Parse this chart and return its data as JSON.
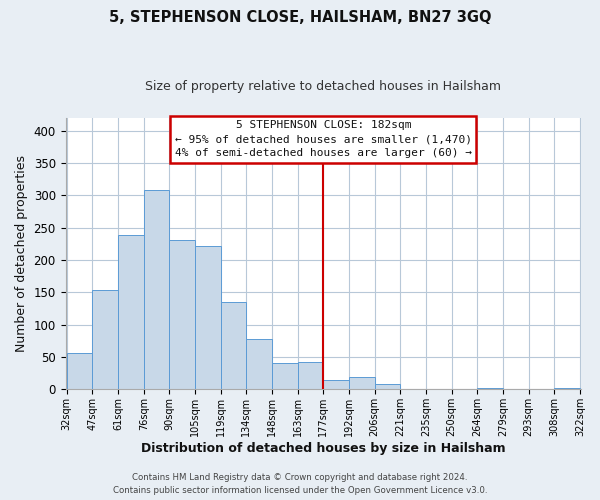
{
  "title": "5, STEPHENSON CLOSE, HAILSHAM, BN27 3GQ",
  "subtitle": "Size of property relative to detached houses in Hailsham",
  "xlabel": "Distribution of detached houses by size in Hailsham",
  "ylabel": "Number of detached properties",
  "bar_labels": [
    "32sqm",
    "47sqm",
    "61sqm",
    "76sqm",
    "90sqm",
    "105sqm",
    "119sqm",
    "134sqm",
    "148sqm",
    "163sqm",
    "177sqm",
    "192sqm",
    "206sqm",
    "221sqm",
    "235sqm",
    "250sqm",
    "264sqm",
    "279sqm",
    "293sqm",
    "308sqm",
    "322sqm"
  ],
  "bar_values": [
    57,
    154,
    238,
    308,
    231,
    222,
    135,
    78,
    41,
    42,
    14,
    19,
    8,
    0,
    0,
    0,
    2,
    0,
    0,
    2
  ],
  "bar_color": "#c8d8e8",
  "bar_edge_color": "#5b9bd5",
  "ylim": [
    0,
    420
  ],
  "yticks": [
    0,
    50,
    100,
    150,
    200,
    250,
    300,
    350,
    400
  ],
  "vline_color": "#cc0000",
  "annotation_title": "5 STEPHENSON CLOSE: 182sqm",
  "annotation_line1": "← 95% of detached houses are smaller (1,470)",
  "annotation_line2": "4% of semi-detached houses are larger (60) →",
  "footer_line1": "Contains HM Land Registry data © Crown copyright and database right 2024.",
  "footer_line2": "Contains public sector information licensed under the Open Government Licence v3.0.",
  "bg_color": "#e8eef4",
  "plot_bg_color": "#ffffff",
  "grid_color": "#b8c8d8",
  "title_color": "#111111",
  "subtitle_color": "#333333"
}
